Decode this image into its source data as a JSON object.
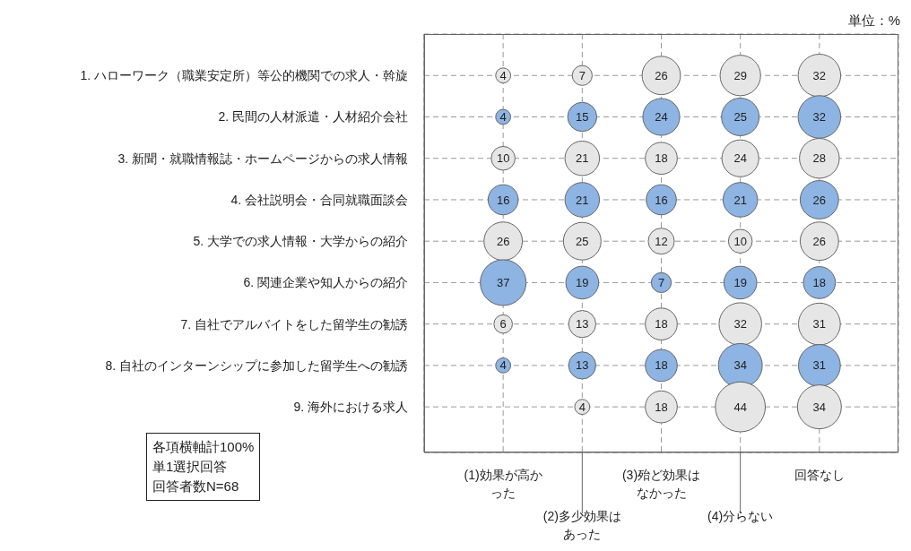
{
  "chart_data": {
    "type": "bubble",
    "categories": [
      "(1)効果が高かった",
      "(2)多少効果はあった",
      "(3)殆ど効果はなかった",
      "(4)分らない",
      "回答なし"
    ],
    "ylim": [
      10.1,
      0
    ],
    "yticks": [
      {
        "value": 1,
        "label": "1. ハローワーク（職業安定所）等公的機関での求人・斡旋"
      },
      {
        "value": 2,
        "label": "2. 民間の人材派遣・人材紹介会社"
      },
      {
        "value": 3,
        "label": "3. 新聞・就職情報誌・ホームページからの求人情報"
      },
      {
        "value": 4,
        "label": "4. 会社説明会・合同就職面談会"
      },
      {
        "value": 5,
        "label": "5. 大学での求人情報・大学からの紹介"
      },
      {
        "value": 6,
        "label": "6. 関連企業や知人からの紹介"
      },
      {
        "value": 7,
        "label": "7. 自社でアルバイトをした留学生の勧誘"
      },
      {
        "value": 8,
        "label": "8. 自社のインターンシップに参加した留学生への勧誘"
      },
      {
        "value": 9,
        "label": "9. 海外における求人"
      }
    ],
    "series": [
      {
        "color": "#e6e6e6",
        "values": [
          1,
          1,
          1,
          1,
          1
        ],
        "sizes": [
          4,
          7,
          26,
          29,
          32
        ],
        "value_labels": [
          "4",
          "7",
          "26",
          "29",
          "32"
        ]
      },
      {
        "color": "#8db4e2",
        "values": [
          2,
          2,
          2,
          2,
          2
        ],
        "sizes": [
          4,
          15,
          24,
          25,
          32
        ],
        "value_labels": [
          "4",
          "15",
          "24",
          "25",
          "32"
        ]
      },
      {
        "color": "#e6e6e6",
        "values": [
          3,
          3,
          3,
          3,
          3
        ],
        "sizes": [
          10,
          21,
          18,
          24,
          28
        ],
        "value_labels": [
          "10",
          "21",
          "18",
          "24",
          "28"
        ]
      },
      {
        "color": "#8db4e2",
        "values": [
          4,
          4,
          4,
          4,
          4
        ],
        "sizes": [
          16,
          21,
          16,
          21,
          26
        ],
        "value_labels": [
          "16",
          "21",
          "16",
          "21",
          "26"
        ]
      },
      {
        "color": "#e6e6e6",
        "values": [
          5,
          5,
          5,
          5,
          5
        ],
        "sizes": [
          26,
          25,
          12,
          10,
          26
        ],
        "value_labels": [
          "26",
          "25",
          "12",
          "10",
          "26"
        ]
      },
      {
        "color": "#8db4e2",
        "values": [
          6,
          6,
          6,
          6,
          6
        ],
        "sizes": [
          37,
          19,
          7,
          19,
          18
        ],
        "value_labels": [
          "37",
          "19",
          "7",
          "19",
          "18"
        ]
      },
      {
        "color": "#e6e6e6",
        "values": [
          7,
          7,
          7,
          7,
          7
        ],
        "sizes": [
          6,
          13,
          18,
          32,
          31
        ],
        "value_labels": [
          "6",
          "13",
          "18",
          "32",
          "31"
        ]
      },
      {
        "color": "#8db4e2",
        "values": [
          8,
          8,
          8,
          8,
          8
        ],
        "sizes": [
          4,
          13,
          18,
          34,
          31
        ],
        "value_labels": [
          "4",
          "13",
          "18",
          "34",
          "31"
        ]
      },
      {
        "color": "#e6e6e6",
        "values": [
          null,
          9,
          9,
          9,
          9
        ],
        "sizes": [
          null,
          4,
          18,
          44,
          34
        ],
        "value_labels": [
          null,
          "4",
          "18",
          "44",
          "34"
        ]
      }
    ],
    "grid": true,
    "annotations": [
      "単位：%",
      "各項横軸計100%",
      "単1選択回答",
      "回答者数N=68"
    ]
  }
}
